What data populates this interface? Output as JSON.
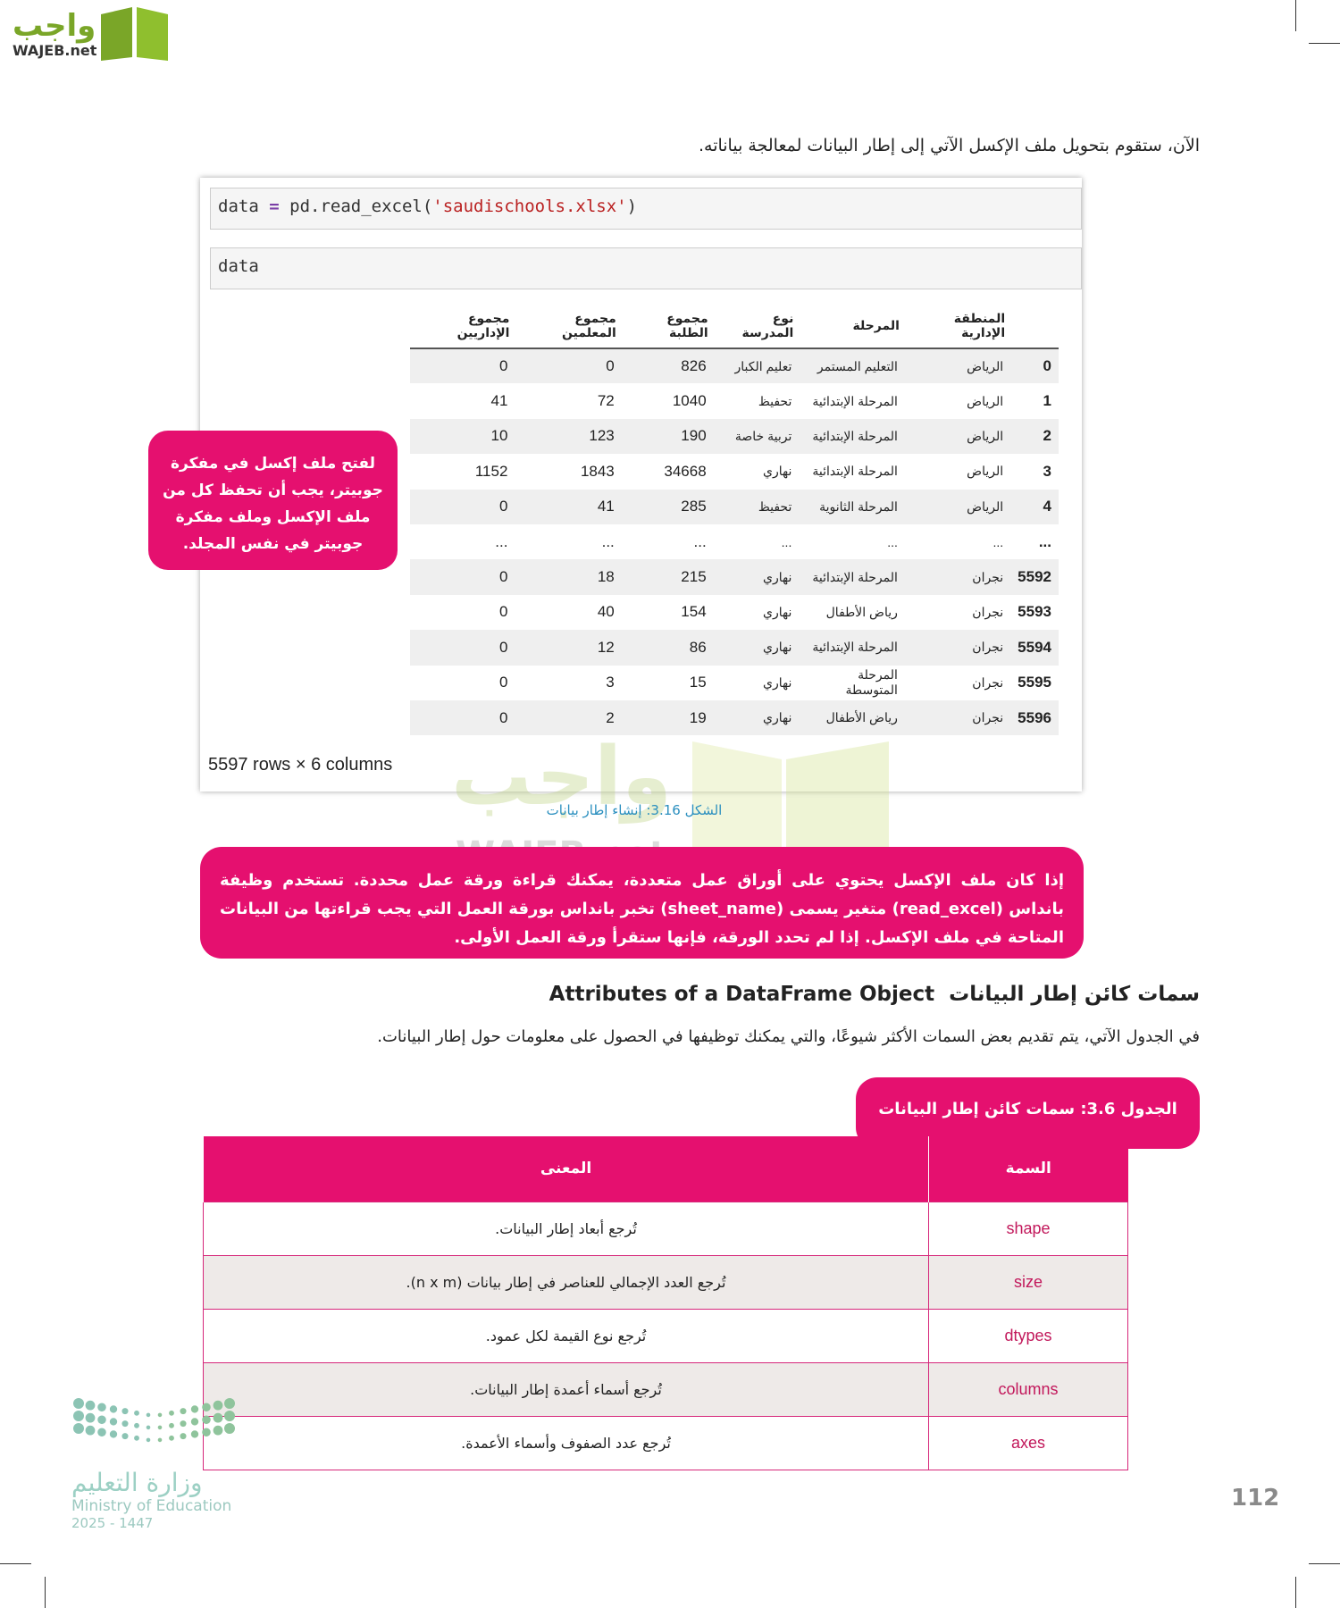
{
  "header": {
    "logo_text": "واجب",
    "logo_sub": "WAJEB.net"
  },
  "intro": "الآن، ستقوم بتحويل ملف الإكسل الآتي إلى إطار البيانات لمعالجة بياناته.",
  "notebook": {
    "cell1": {
      "var": "data",
      "op": "=",
      "call": "pd.read_excel(",
      "arg": "'saudischools.xlsx'",
      "close": ")"
    },
    "cell2": "data",
    "columns": [
      "",
      "المنطقة الإدارية",
      "المرحلة",
      "نوع المدرسة",
      "مجموع الطلبة",
      "مجموع المعلمين",
      "مجموع الإداريين"
    ],
    "rows": [
      [
        "0",
        "الرياض",
        "التعليم المستمر",
        "تعليم الكبار",
        "826",
        "0",
        "0"
      ],
      [
        "1",
        "الرياض",
        "المرحلة الإبتدائية",
        "تحفيظ",
        "1040",
        "72",
        "41"
      ],
      [
        "2",
        "الرياض",
        "المرحلة الإبتدائية",
        "تربية خاصة",
        "190",
        "123",
        "10"
      ],
      [
        "3",
        "الرياض",
        "المرحلة الإبتدائية",
        "نهاري",
        "34668",
        "1843",
        "1152"
      ],
      [
        "4",
        "الرياض",
        "المرحلة الثانوية",
        "تحفيظ",
        "285",
        "41",
        "0"
      ],
      [
        "...",
        "...",
        "...",
        "...",
        "...",
        "...",
        "..."
      ],
      [
        "5592",
        "نجران",
        "المرحلة الإبتدائية",
        "نهاري",
        "215",
        "18",
        "0"
      ],
      [
        "5593",
        "نجران",
        "رياض الأطفال",
        "نهاري",
        "154",
        "40",
        "0"
      ],
      [
        "5594",
        "نجران",
        "المرحلة الإبتدائية",
        "نهاري",
        "86",
        "12",
        "0"
      ],
      [
        "5595",
        "نجران",
        "المرحلة المتوسطة",
        "نهاري",
        "15",
        "3",
        "0"
      ],
      [
        "5596",
        "نجران",
        "رياض الأطفال",
        "نهاري",
        "19",
        "2",
        "0"
      ]
    ],
    "shape_text": "5597 rows × 6 columns"
  },
  "callout": "لفتح ملف إكسل في مفكرة جوبيتر، يجب أن تحفظ كل من ملف الإكسل وملف مفكرة جوبيتر في نفس المجلد.",
  "figure_caption": "الشكل 3.16: إنشاء إطار بيانات",
  "note": "إذا كان ملف الإكسل يحتوي على أوراق عمل متعددة، يمكنك قراءة ورقة عمل محددة. تستخدم وظيفة بانداس (read_excel) متغير يسمى (sheet_name) تخبر بانداس بورقة العمل التي يجب قراءتها من البيانات المتاحة في ملف الإكسل. إذا لم تحدد الورقة، فإنها ستقرأ ورقة العمل الأولى.",
  "section": {
    "title_ar": "سمات كائن إطار البيانات",
    "title_en": "Attributes of a DataFrame Object",
    "paragraph": "في الجدول الآتي، يتم تقديم بعض السمات الأكثر شيوعًا، والتي يمكنك توظيفها في الحصول على معلومات حول إطار البيانات."
  },
  "table": {
    "caption": "الجدول 3.6: سمات كائن إطار البيانات",
    "headers": [
      "السمة",
      "المعنى"
    ],
    "rows": [
      [
        "shape",
        "تُرجع أبعاد إطار البيانات."
      ],
      [
        "size",
        "تُرجع العدد الإجمالي للعناصر في إطار بيانات (n x m)."
      ],
      [
        "dtypes",
        "تُرجع نوع القيمة لكل عمود."
      ],
      [
        "columns",
        "تُرجع أسماء أعمدة إطار البيانات."
      ],
      [
        "axes",
        "تُرجع عدد الصفوف وأسماء الأعمدة."
      ]
    ]
  },
  "footer": {
    "ministry_ar": "وزارة التعليم",
    "ministry_en": "Ministry of Education",
    "year": "2025 - 1447",
    "page_number": "112"
  },
  "colors": {
    "accent": "#e5106f",
    "caption_blue": "#2a8fbf",
    "logo_green": "#7aa628",
    "moe_teal": "#8cc4b4"
  }
}
